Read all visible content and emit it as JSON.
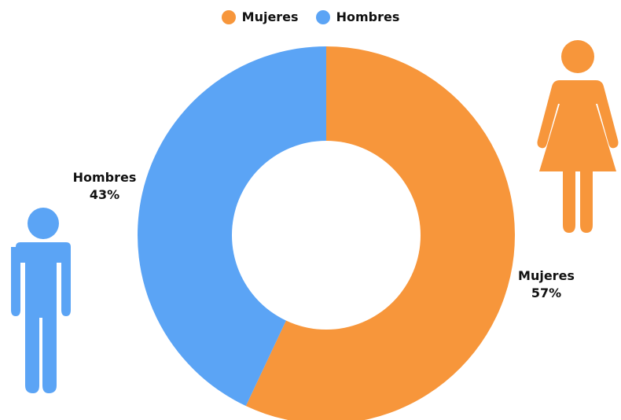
{
  "colors": {
    "mujeres": "#F7963B",
    "hombres": "#5BA4F5"
  },
  "icons": {
    "female": "woman-figure-icon",
    "male": "man-figure-icon"
  },
  "chart_data": {
    "type": "pie",
    "donut": true,
    "legend_position": "top-center",
    "series": [
      {
        "name": "Mujeres",
        "value": 57,
        "label": "Mujeres",
        "value_label": "57%",
        "color": "#F7963B"
      },
      {
        "name": "Hombres",
        "value": 43,
        "label": "Hombres",
        "value_label": "43%",
        "color": "#5BA4F5"
      }
    ],
    "legend": [
      "Mujeres",
      "Hombres"
    ],
    "start": "top",
    "direction": "clockwise"
  }
}
